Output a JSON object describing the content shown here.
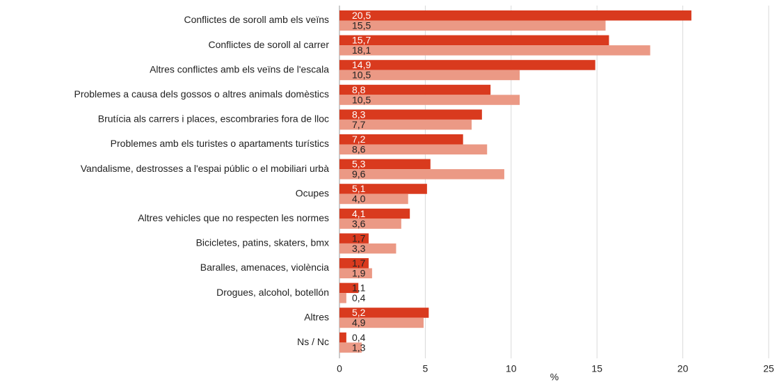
{
  "chart_data": {
    "type": "hbar",
    "categories": [
      "Conflictes de soroll amb els veïns",
      "Conflictes de soroll al carrer",
      "Altres conflictes amb els veïns de l'escala",
      "Problemes a causa dels gossos o altres animals domèstics",
      "Brutícia als carrers i places, escombraries fora de lloc",
      "Problemes amb els turistes o apartaments turístics",
      "Vandalisme, destrosses a l'espai públic o el mobiliari urbà",
      "Ocupes",
      "Altres vehicles que no respecten les normes",
      "Bicicletes, patins, skaters, bmx",
      "Baralles, amenaces, violència",
      "Drogues, alcohol, botellón",
      "Altres",
      "Ns / Nc"
    ],
    "series": [
      {
        "color": "#d93a1e",
        "values": [
          20.5,
          15.7,
          14.9,
          8.8,
          8.3,
          7.2,
          5.3,
          5.1,
          4.1,
          1.7,
          1.7,
          1.1,
          5.2,
          0.4
        ],
        "value_labels": [
          "20,5",
          "15,7",
          "14,9",
          "8,8",
          "8,3",
          "7,2",
          "5,3",
          "5,1",
          "4,1",
          "1,7",
          "1,7",
          "1,1",
          "5,2",
          "0,4"
        ]
      },
      {
        "color": "#eb9985",
        "values": [
          15.5,
          18.1,
          10.5,
          10.5,
          7.7,
          8.6,
          9.6,
          4.0,
          3.6,
          3.3,
          1.9,
          0.4,
          4.9,
          1.3
        ],
        "value_labels": [
          "15,5",
          "18,1",
          "10,5",
          "10,5",
          "7,7",
          "8,6",
          "9,6",
          "4,0",
          "3,6",
          "3,3",
          "1,9",
          "0,4",
          "4,9",
          "1,3"
        ]
      }
    ],
    "xlabel": "%",
    "xlim": [
      0,
      25
    ],
    "xticks": [
      0,
      5,
      10,
      15,
      20,
      25
    ],
    "grid": true
  }
}
